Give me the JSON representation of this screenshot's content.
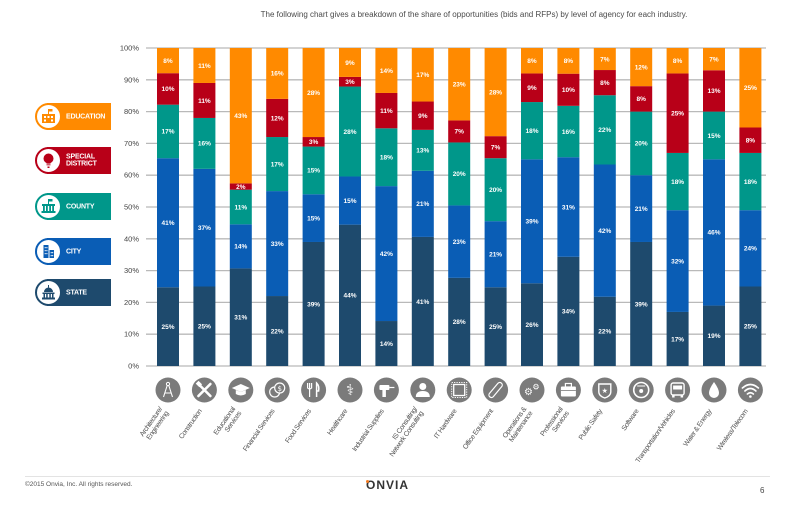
{
  "page": {
    "title": "The following chart gives a breakdown of the share of opportunities (bids and RFPs) by level of agency for each industry.",
    "footer": {
      "copyright": "©2015 Onvia, Inc. All rights reserved.",
      "logo": "ONVIA",
      "page_number": "6"
    }
  },
  "legend": [
    {
      "key": "education",
      "label_lines": [
        "EDUCATION"
      ],
      "icon": "school-building-icon",
      "color": "#ff8a00"
    },
    {
      "key": "special_district",
      "label_lines": [
        "SPECIAL",
        "DISTRICT"
      ],
      "icon": "lightbulb-icon",
      "color": "#b80018"
    },
    {
      "key": "county",
      "label_lines": [
        "COUNTY"
      ],
      "icon": "county-building-icon",
      "color": "#00978a"
    },
    {
      "key": "city",
      "label_lines": [
        "CITY"
      ],
      "icon": "city-buildings-icon",
      "color": "#0a5db5"
    },
    {
      "key": "state",
      "label_lines": [
        "STATE"
      ],
      "icon": "capitol-dome-icon",
      "color": "#1e4a6d"
    }
  ],
  "chart_data": {
    "type": "bar",
    "stacked": true,
    "title": "The following chart gives a breakdown of the share of opportunities (bids and RFPs) by level of agency for each industry.",
    "xlabel": "",
    "ylabel": "",
    "ylim": [
      0,
      100
    ],
    "yticks": [
      "0%",
      "10%",
      "20%",
      "30%",
      "40%",
      "50%",
      "60%",
      "70%",
      "80%",
      "90%",
      "100%"
    ],
    "grid": true,
    "legend_position": "left",
    "categories": [
      "Architecture/ Engineering",
      "Construction",
      "Educational Services",
      "Financial Services",
      "Food Services",
      "Healthcare",
      "Industrial Supplies",
      "IS Consulting/ Network Consulting",
      "IT Hardware",
      "Office Equipment",
      "Operations & Maintenance",
      "Professional Services",
      "Public Safety",
      "Software",
      "Transportation/Vehicles",
      "Water & Energy",
      "Wireless/Telecom"
    ],
    "category_label_lines": [
      [
        "Architecture/",
        "Engineering"
      ],
      [
        "Construction"
      ],
      [
        "Educational",
        "Services"
      ],
      [
        "Financial Services"
      ],
      [
        "Food Services"
      ],
      [
        "Healthcare"
      ],
      [
        "Industrial Supplies"
      ],
      [
        "IS Consulting/",
        "Network Consulting"
      ],
      [
        "IT Hardware"
      ],
      [
        "Office Equipment"
      ],
      [
        "Operations &",
        "Maintenance"
      ],
      [
        "Professional",
        "Services"
      ],
      [
        "Public Safety"
      ],
      [
        "Software"
      ],
      [
        "Transportation/Vehicles"
      ],
      [
        "Water & Energy"
      ],
      [
        "Wireless/Telecom"
      ]
    ],
    "category_icons": [
      "compass-icon",
      "tools-icon",
      "graduation-cap-icon",
      "coins-icon",
      "fork-knife-icon",
      "caduceus-icon",
      "drill-icon",
      "person-icon",
      "chip-icon",
      "paperclip-icon",
      "gears-icon",
      "briefcase-icon",
      "police-badge-icon",
      "disc-icon",
      "bus-icon",
      "water-drop-icon",
      "wifi-icon"
    ],
    "icon_color": "#7b7b7b",
    "series": [
      {
        "name": "State",
        "color": "#1e4a6d",
        "values": [
          25,
          25,
          31,
          22,
          39,
          44,
          14,
          41,
          28,
          25,
          26,
          34,
          22,
          39,
          17,
          19,
          25
        ]
      },
      {
        "name": "City",
        "color": "#0a5db5",
        "values": [
          41,
          37,
          14,
          33,
          15,
          15,
          42,
          21,
          23,
          21,
          39,
          31,
          42,
          21,
          32,
          46,
          24
        ]
      },
      {
        "name": "County",
        "color": "#00978a",
        "values": [
          17,
          16,
          11,
          17,
          15,
          28,
          18,
          13,
          20,
          20,
          18,
          16,
          22,
          20,
          18,
          15,
          18
        ]
      },
      {
        "name": "Special District",
        "color": "#b80018",
        "values": [
          10,
          11,
          2,
          12,
          3,
          3,
          11,
          9,
          7,
          7,
          9,
          10,
          8,
          8,
          25,
          13,
          8
        ]
      },
      {
        "name": "Education",
        "color": "#ff8a00",
        "values": [
          8,
          11,
          43,
          16,
          28,
          9,
          14,
          17,
          23,
          28,
          8,
          8,
          7,
          12,
          8,
          7,
          25
        ]
      }
    ]
  }
}
